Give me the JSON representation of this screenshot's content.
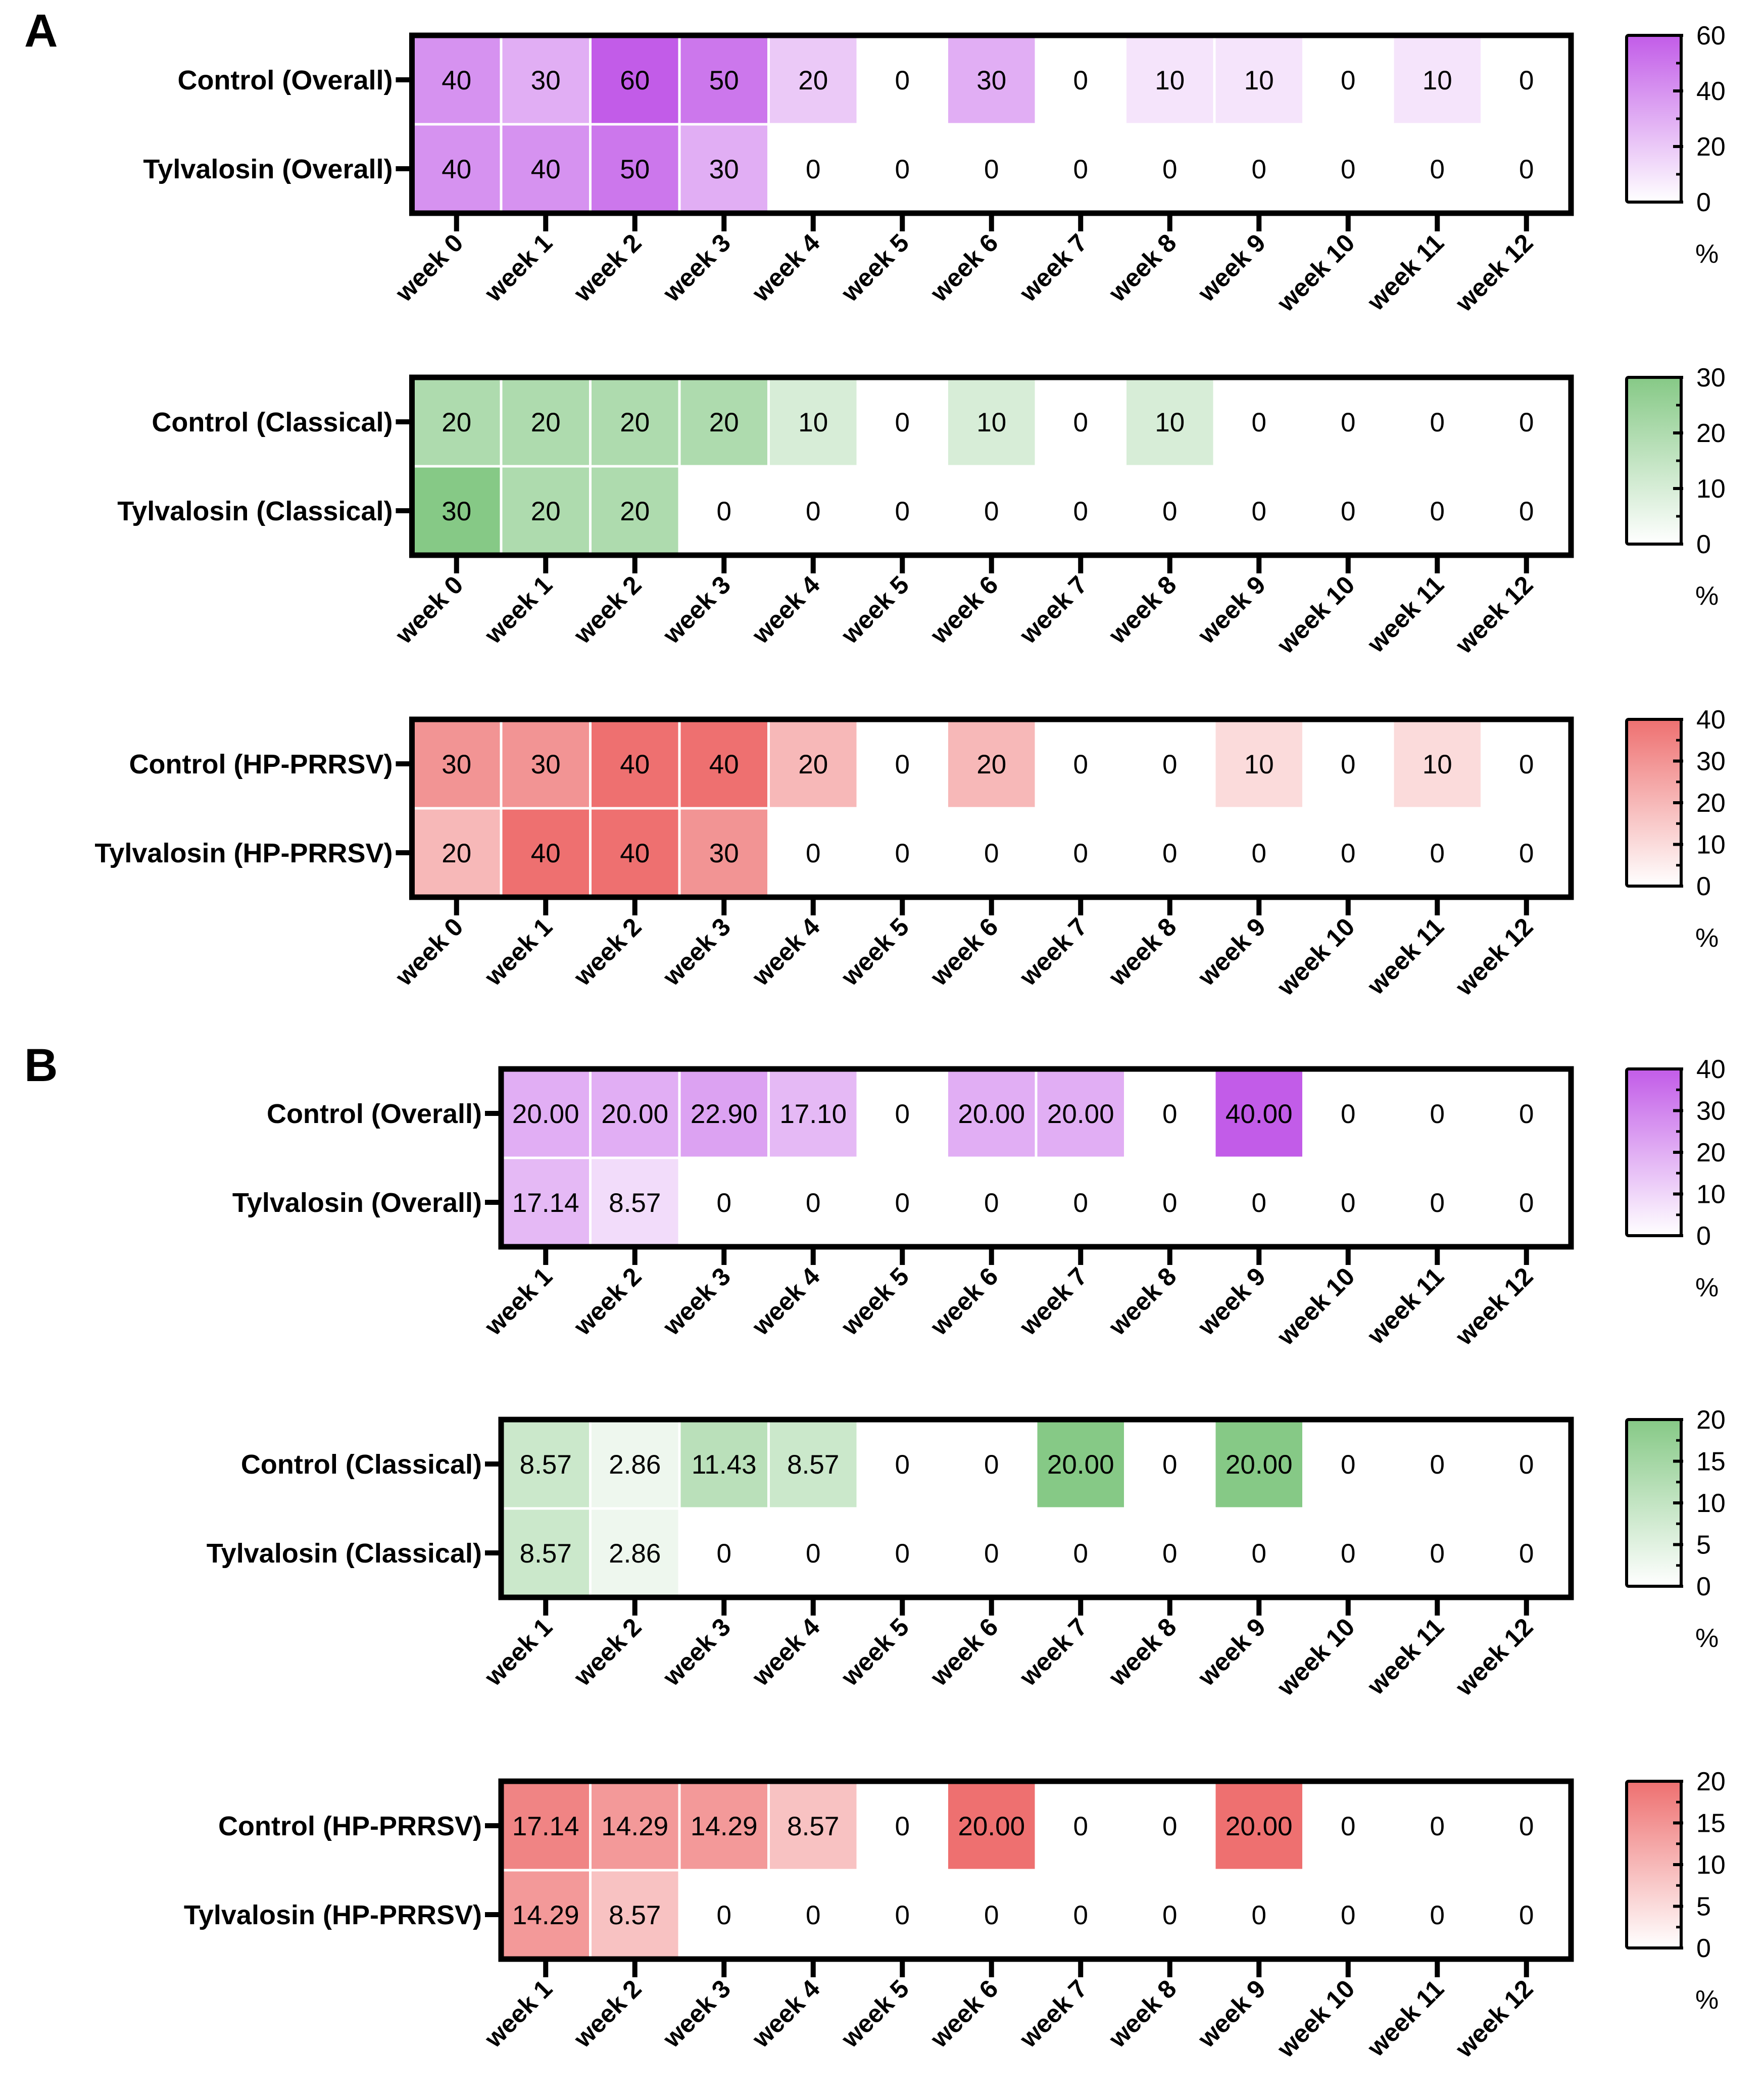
{
  "figure": {
    "panels": [
      {
        "letter": "A"
      },
      {
        "letter": "B"
      }
    ]
  },
  "chart_data": [
    {
      "type": "heatmap",
      "panel": "A",
      "rows": [
        "Control (Overall)",
        "Tylvalosin (Overall)"
      ],
      "columns": [
        "week 0",
        "week 1",
        "week 2",
        "week 3",
        "week 4",
        "week 5",
        "week 6",
        "week 7",
        "week 8",
        "week 9",
        "week 10",
        "week 11",
        "week 12"
      ],
      "values": [
        [
          40,
          30,
          60,
          50,
          20,
          0,
          30,
          0,
          10,
          10,
          0,
          10,
          0
        ],
        [
          40,
          40,
          50,
          30,
          0,
          0,
          0,
          0,
          0,
          0,
          0,
          0,
          0
        ]
      ],
      "labels": [
        [
          "40",
          "30",
          "60",
          "50",
          "20",
          "0",
          "30",
          "0",
          "10",
          "10",
          "0",
          "10",
          "0"
        ],
        [
          "40",
          "40",
          "50",
          "30",
          "0",
          "0",
          "0",
          "0",
          "0",
          "0",
          "0",
          "0",
          "0"
        ]
      ],
      "color": "#c25ce8",
      "colorbar": {
        "min": 0,
        "max": 60,
        "ticks": [
          "0",
          "20",
          "40",
          "60"
        ],
        "unit": "%"
      }
    },
    {
      "type": "heatmap",
      "panel": "A",
      "rows": [
        "Control (Classical)",
        "Tylvalosin (Classical)"
      ],
      "columns": [
        "week 0",
        "week 1",
        "week 2",
        "week 3",
        "week 4",
        "week 5",
        "week 6",
        "week 7",
        "week 8",
        "week 9",
        "week 10",
        "week 11",
        "week 12"
      ],
      "values": [
        [
          20,
          20,
          20,
          20,
          10,
          0,
          10,
          0,
          10,
          0,
          0,
          0,
          0
        ],
        [
          30,
          20,
          20,
          0,
          0,
          0,
          0,
          0,
          0,
          0,
          0,
          0,
          0
        ]
      ],
      "labels": [
        [
          "20",
          "20",
          "20",
          "20",
          "10",
          "0",
          "10",
          "0",
          "10",
          "0",
          "0",
          "0",
          "0"
        ],
        [
          "30",
          "20",
          "20",
          "0",
          "0",
          "0",
          "0",
          "0",
          "0",
          "0",
          "0",
          "0",
          "0"
        ]
      ],
      "color": "#86c986",
      "colorbar": {
        "min": 0,
        "max": 30,
        "ticks": [
          "0",
          "10",
          "20",
          "30"
        ],
        "unit": "%"
      }
    },
    {
      "type": "heatmap",
      "panel": "A",
      "rows": [
        "Control (HP-PRRSV)",
        "Tylvalosin (HP-PRRSV)"
      ],
      "columns": [
        "week 0",
        "week 1",
        "week 2",
        "week 3",
        "week 4",
        "week 5",
        "week 6",
        "week 7",
        "week 8",
        "week 9",
        "week 10",
        "week 11",
        "week 12"
      ],
      "values": [
        [
          30,
          30,
          40,
          40,
          20,
          0,
          20,
          0,
          0,
          10,
          0,
          10,
          0
        ],
        [
          20,
          40,
          40,
          30,
          0,
          0,
          0,
          0,
          0,
          0,
          0,
          0,
          0
        ]
      ],
      "labels": [
        [
          "30",
          "30",
          "40",
          "40",
          "20",
          "0",
          "20",
          "0",
          "0",
          "10",
          "0",
          "10",
          "0"
        ],
        [
          "20",
          "40",
          "40",
          "30",
          "0",
          "0",
          "0",
          "0",
          "0",
          "0",
          "0",
          "0",
          "0"
        ]
      ],
      "color": "#ee7070",
      "colorbar": {
        "min": 0,
        "max": 40,
        "ticks": [
          "0",
          "10",
          "20",
          "30",
          "40"
        ],
        "unit": "%"
      }
    },
    {
      "type": "heatmap",
      "panel": "B",
      "rows": [
        "Control (Overall)",
        "Tylvalosin (Overall)"
      ],
      "columns": [
        "week 1",
        "week 2",
        "week 3",
        "week 4",
        "week 5",
        "week 6",
        "week 7",
        "week 8",
        "week 9",
        "week 10",
        "week 11",
        "week 12"
      ],
      "values": [
        [
          20.0,
          20.0,
          22.9,
          17.1,
          0,
          20.0,
          20.0,
          0,
          40.0,
          0,
          0,
          0
        ],
        [
          17.14,
          8.57,
          0,
          0,
          0,
          0,
          0,
          0,
          0,
          0,
          0,
          0
        ]
      ],
      "labels": [
        [
          "20.00",
          "20.00",
          "22.90",
          "17.10",
          "0",
          "20.00",
          "20.00",
          "0",
          "40.00",
          "0",
          "0",
          "0"
        ],
        [
          "17.14",
          "8.57",
          "0",
          "0",
          "0",
          "0",
          "0",
          "0",
          "0",
          "0",
          "0",
          "0"
        ]
      ],
      "color": "#c25ce8",
      "colorbar": {
        "min": 0,
        "max": 40,
        "ticks": [
          "0",
          "10",
          "20",
          "30",
          "40"
        ],
        "unit": "%"
      }
    },
    {
      "type": "heatmap",
      "panel": "B",
      "rows": [
        "Control (Classical)",
        "Tylvalosin (Classical)"
      ],
      "columns": [
        "week 1",
        "week 2",
        "week 3",
        "week 4",
        "week 5",
        "week 6",
        "week 7",
        "week 8",
        "week 9",
        "week 10",
        "week 11",
        "week 12"
      ],
      "values": [
        [
          8.57,
          2.86,
          11.43,
          8.57,
          0,
          0,
          20.0,
          0,
          20.0,
          0,
          0,
          0
        ],
        [
          8.57,
          2.86,
          0,
          0,
          0,
          0,
          0,
          0,
          0,
          0,
          0,
          0
        ]
      ],
      "labels": [
        [
          "8.57",
          "2.86",
          "11.43",
          "8.57",
          "0",
          "0",
          "20.00",
          "0",
          "20.00",
          "0",
          "0",
          "0"
        ],
        [
          "8.57",
          "2.86",
          "0",
          "0",
          "0",
          "0",
          "0",
          "0",
          "0",
          "0",
          "0",
          "0"
        ]
      ],
      "color": "#86c986",
      "colorbar": {
        "min": 0,
        "max": 20,
        "ticks": [
          "0",
          "5",
          "10",
          "15",
          "20"
        ],
        "unit": "%"
      }
    },
    {
      "type": "heatmap",
      "panel": "B",
      "rows": [
        "Control (HP-PRRSV)",
        "Tylvalosin (HP-PRRSV)"
      ],
      "columns": [
        "week 1",
        "week 2",
        "week 3",
        "week 4",
        "week 5",
        "week 6",
        "week 7",
        "week 8",
        "week 9",
        "week 10",
        "week 11",
        "week 12"
      ],
      "values": [
        [
          17.14,
          14.29,
          14.29,
          8.57,
          0,
          20.0,
          0,
          0,
          20.0,
          0,
          0,
          0
        ],
        [
          14.29,
          8.57,
          0,
          0,
          0,
          0,
          0,
          0,
          0,
          0,
          0,
          0
        ]
      ],
      "labels": [
        [
          "17.14",
          "14.29",
          "14.29",
          "8.57",
          "0",
          "20.00",
          "0",
          "0",
          "20.00",
          "0",
          "0",
          "0"
        ],
        [
          "14.29",
          "8.57",
          "0",
          "0",
          "0",
          "0",
          "0",
          "0",
          "0",
          "0",
          "0",
          "0"
        ]
      ],
      "color": "#ee7070",
      "colorbar": {
        "min": 0,
        "max": 20,
        "ticks": [
          "0",
          "5",
          "10",
          "15",
          "20"
        ],
        "unit": "%"
      }
    }
  ]
}
